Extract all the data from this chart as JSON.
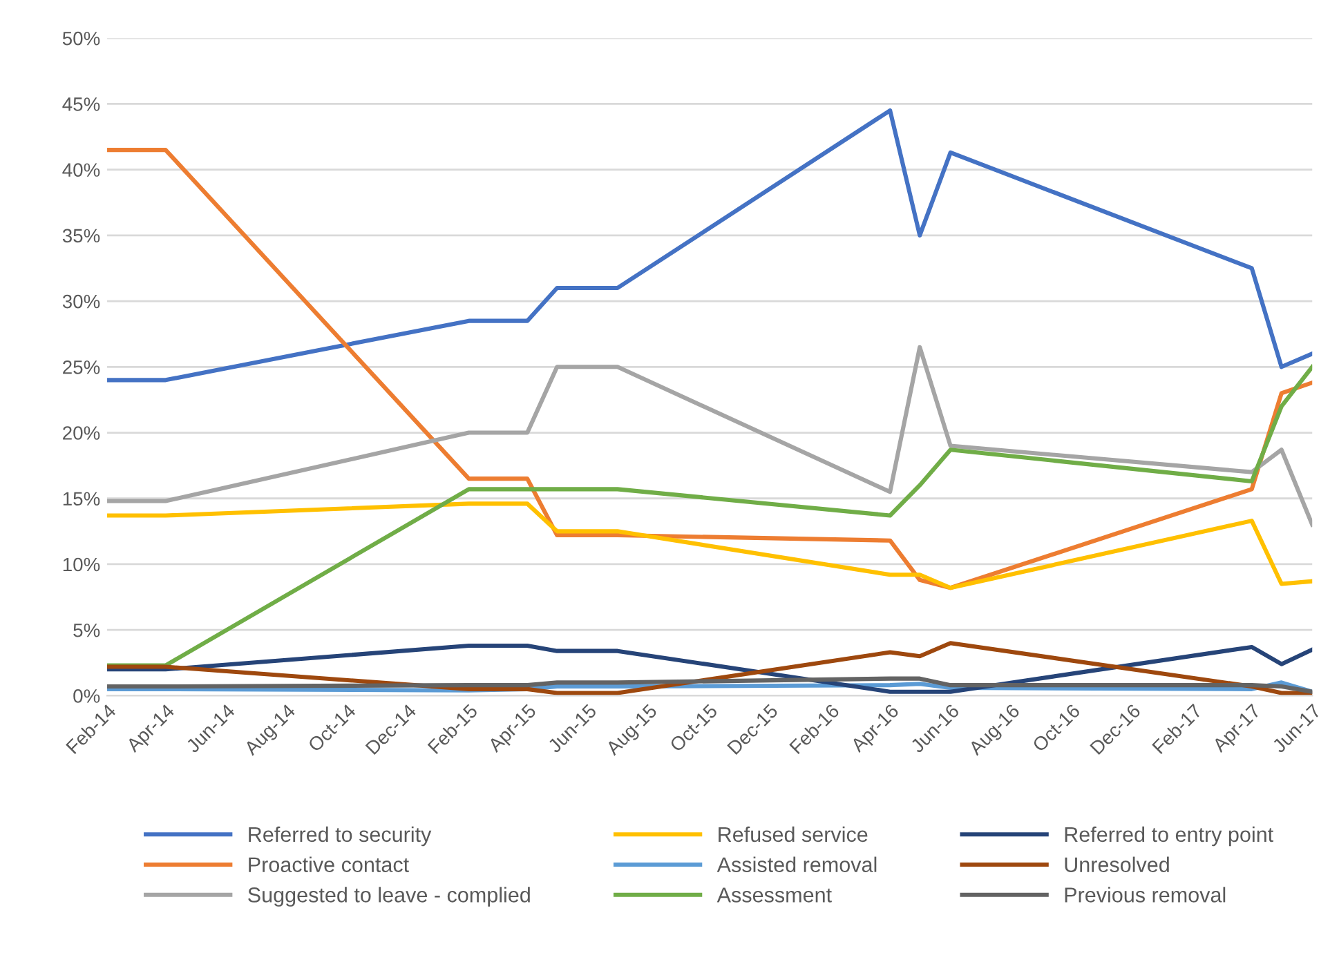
{
  "chart_data": {
    "type": "line",
    "x": [
      "2014-02",
      "2014-04",
      "2015-02",
      "2015-04",
      "2015-05",
      "2015-07",
      "2016-04",
      "2016-05",
      "2016-06",
      "2017-04",
      "2017-05",
      "2017-06"
    ],
    "series": [
      {
        "name": "Referred to security",
        "color": "#4472c4",
        "values": [
          24,
          24,
          28.5,
          28.5,
          31,
          31,
          44.5,
          35,
          41.3,
          32.5,
          25,
          26
        ]
      },
      {
        "name": "Proactive contact",
        "color": "#ed7d31",
        "values": [
          41.5,
          41.5,
          16.5,
          16.5,
          12.2,
          12.2,
          11.8,
          8.8,
          8.2,
          15.7,
          23,
          23.8
        ]
      },
      {
        "name": "Suggested to leave - complied",
        "color": "#a5a5a5",
        "values": [
          14.8,
          14.8,
          20,
          20,
          25,
          25,
          15.5,
          26.5,
          19,
          17,
          18.7,
          13
        ]
      },
      {
        "name": "Refused service",
        "color": "#ffc000",
        "values": [
          13.7,
          13.7,
          14.6,
          14.6,
          12.5,
          12.5,
          9.2,
          9.2,
          8.2,
          13.3,
          8.5,
          8.7
        ]
      },
      {
        "name": "Assisted removal",
        "color": "#5b9bd5",
        "values": [
          0.5,
          0.5,
          0.4,
          0.5,
          0.7,
          0.7,
          0.8,
          0.9,
          0.6,
          0.5,
          1,
          0.3
        ]
      },
      {
        "name": "Assessment",
        "color": "#70ad47",
        "values": [
          2.3,
          2.3,
          15.7,
          15.7,
          15.7,
          15.7,
          13.7,
          16,
          18.7,
          16.3,
          22,
          25
        ]
      },
      {
        "name": "Referred to entry point",
        "color": "#264478",
        "values": [
          2,
          2,
          3.8,
          3.8,
          3.4,
          3.4,
          0.3,
          0.3,
          0.3,
          3.7,
          2.4,
          3.5
        ]
      },
      {
        "name": "Unresolved",
        "color": "#9e480e",
        "values": [
          2.2,
          2.2,
          0.5,
          0.5,
          0.2,
          0.2,
          3.3,
          3.0,
          4.0,
          0.7,
          0.2,
          0.2
        ]
      },
      {
        "name": "Previous removal",
        "color": "#636363",
        "values": [
          0.7,
          0.7,
          0.8,
          0.8,
          1.0,
          1.0,
          1.3,
          1.3,
          0.8,
          0.8,
          0.7,
          0.3
        ]
      }
    ],
    "xlim": [
      "2014-02",
      "2017-06"
    ],
    "xticks": [
      {
        "value": "2014-02",
        "label": "Feb-14"
      },
      {
        "value": "2014-04",
        "label": "Apr-14"
      },
      {
        "value": "2014-06",
        "label": "Jun-14"
      },
      {
        "value": "2014-08",
        "label": "Aug-14"
      },
      {
        "value": "2014-10",
        "label": "Oct-14"
      },
      {
        "value": "2014-12",
        "label": "Dec-14"
      },
      {
        "value": "2015-02",
        "label": "Feb-15"
      },
      {
        "value": "2015-04",
        "label": "Apr-15"
      },
      {
        "value": "2015-06",
        "label": "Jun-15"
      },
      {
        "value": "2015-08",
        "label": "Aug-15"
      },
      {
        "value": "2015-10",
        "label": "Oct-15"
      },
      {
        "value": "2015-12",
        "label": "Dec-15"
      },
      {
        "value": "2016-02",
        "label": "Feb-16"
      },
      {
        "value": "2016-04",
        "label": "Apr-16"
      },
      {
        "value": "2016-06",
        "label": "Jun-16"
      },
      {
        "value": "2016-08",
        "label": "Aug-16"
      },
      {
        "value": "2016-10",
        "label": "Oct-16"
      },
      {
        "value": "2016-12",
        "label": "Dec-16"
      },
      {
        "value": "2017-02",
        "label": "Feb-17"
      },
      {
        "value": "2017-04",
        "label": "Apr-17"
      },
      {
        "value": "2017-06",
        "label": "Jun-17"
      }
    ],
    "ylim": [
      0,
      50
    ],
    "yticks": [
      {
        "value": 0,
        "label": "0%"
      },
      {
        "value": 5,
        "label": "5%"
      },
      {
        "value": 10,
        "label": "10%"
      },
      {
        "value": 15,
        "label": "15%"
      },
      {
        "value": 20,
        "label": "20%"
      },
      {
        "value": 25,
        "label": "25%"
      },
      {
        "value": 30,
        "label": "30%"
      },
      {
        "value": 35,
        "label": "35%"
      },
      {
        "value": 40,
        "label": "40%"
      },
      {
        "value": 45,
        "label": "45%"
      },
      {
        "value": 50,
        "label": "50%"
      }
    ],
    "grid": "y",
    "legend": "bottom",
    "marker": "none",
    "line_style": "solid"
  }
}
